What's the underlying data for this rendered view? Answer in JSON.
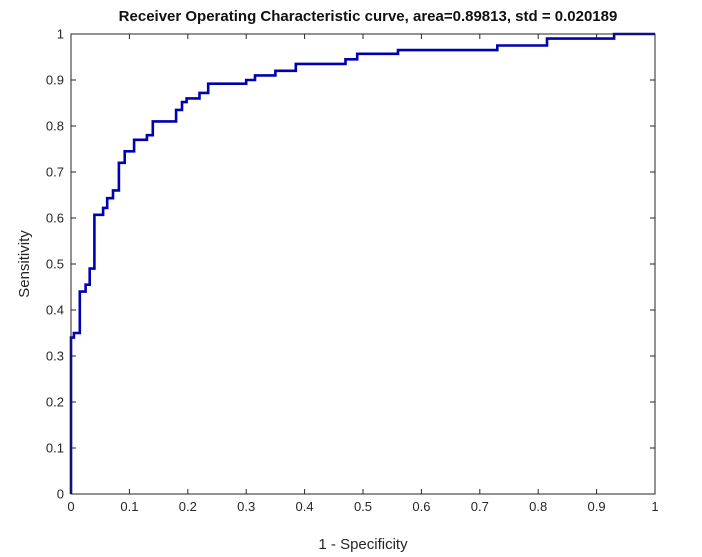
{
  "chart_data": {
    "type": "line",
    "title": "Receiver Operating Characteristic curve, area=0.89813, std = 0.020189",
    "xlabel": "1 - Specificity",
    "ylabel": "Sensitivity",
    "xlim": [
      0,
      1
    ],
    "ylim": [
      0,
      1
    ],
    "xticks": [
      "0",
      "0.1",
      "0.2",
      "0.3",
      "0.4",
      "0.5",
      "0.6",
      "0.7",
      "0.8",
      "0.9",
      "1"
    ],
    "yticks": [
      "0",
      "0.1",
      "0.2",
      "0.3",
      "0.4",
      "0.5",
      "0.6",
      "0.7",
      "0.8",
      "0.9",
      "1"
    ],
    "grid": false,
    "legend": "none",
    "line_color": "#0000b3",
    "series": [
      {
        "x": [
          0,
          0,
          0.005,
          0.005,
          0.015,
          0.015,
          0.025,
          0.025,
          0.032,
          0.032,
          0.04,
          0.04,
          0.055,
          0.055,
          0.062,
          0.062,
          0.072,
          0.072,
          0.082,
          0.082,
          0.092,
          0.092,
          0.108,
          0.108,
          0.13,
          0.13,
          0.14,
          0.14,
          0.18,
          0.18,
          0.19,
          0.19,
          0.198,
          0.198,
          0.22,
          0.22,
          0.235,
          0.235,
          0.3,
          0.3,
          0.315,
          0.315,
          0.35,
          0.35,
          0.385,
          0.385,
          0.47,
          0.47,
          0.49,
          0.49,
          0.56,
          0.56,
          0.73,
          0.73,
          0.815,
          0.815,
          0.93,
          0.93,
          1
        ],
        "y": [
          0,
          0.34,
          0.34,
          0.35,
          0.35,
          0.44,
          0.44,
          0.455,
          0.455,
          0.49,
          0.49,
          0.607,
          0.607,
          0.622,
          0.622,
          0.643,
          0.643,
          0.66,
          0.66,
          0.72,
          0.72,
          0.745,
          0.745,
          0.77,
          0.77,
          0.78,
          0.78,
          0.81,
          0.81,
          0.835,
          0.835,
          0.852,
          0.852,
          0.86,
          0.86,
          0.872,
          0.872,
          0.892,
          0.892,
          0.9,
          0.9,
          0.91,
          0.91,
          0.92,
          0.92,
          0.935,
          0.935,
          0.945,
          0.945,
          0.957,
          0.957,
          0.965,
          0.965,
          0.975,
          0.975,
          0.99,
          0.99,
          1,
          1
        ]
      }
    ]
  }
}
